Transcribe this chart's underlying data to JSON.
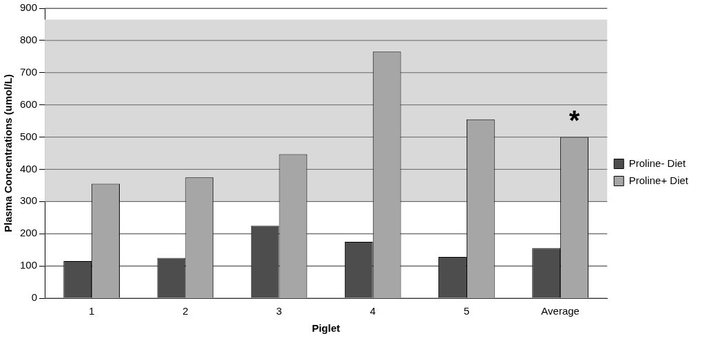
{
  "chart_data": {
    "type": "bar",
    "xlabel": "Piglet",
    "ylabel": "Plasma Concentrations (umol/L)",
    "categories": [
      "1",
      "2",
      "3",
      "4",
      "5",
      "Average"
    ],
    "series": [
      {
        "name": "Proline- Diet",
        "color": "#4d4d4d",
        "values": [
          115,
          125,
          225,
          175,
          128,
          155
        ]
      },
      {
        "name": "Proline+ Diet",
        "color": "#a6a6a6",
        "values": [
          355,
          375,
          447,
          765,
          555,
          500
        ]
      }
    ],
    "ylim": [
      0,
      900
    ],
    "yticks": [
      0,
      100,
      200,
      300,
      400,
      500,
      600,
      700,
      800,
      900
    ],
    "grid": "y",
    "legend": "right",
    "bands": [
      {
        "axis": "y",
        "from": 300,
        "to": 865,
        "color": "#d9d9d9"
      }
    ],
    "annotations": [
      "*"
    ]
  }
}
